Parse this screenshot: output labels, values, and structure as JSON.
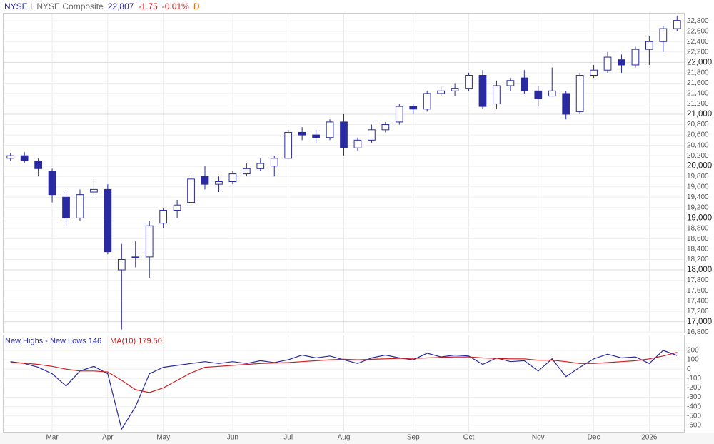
{
  "header": {
    "symbol": "NYSE.I",
    "name": "NYSE Composite",
    "last": "22,807",
    "change": "-1.75",
    "change_pct": "-0.01%",
    "period": "D"
  },
  "chart_data": [
    {
      "type": "candlestick",
      "color": "#2a2aa0",
      "grid": true,
      "categories": [
        null,
        null,
        null,
        "Mar",
        null,
        null,
        null,
        "Apr",
        null,
        null,
        null,
        "May",
        null,
        null,
        null,
        null,
        "Jun",
        null,
        null,
        null,
        "Jul",
        null,
        null,
        null,
        "Aug",
        null,
        null,
        null,
        null,
        "Sep",
        null,
        null,
        null,
        "Oct",
        null,
        null,
        null,
        null,
        "Nov",
        null,
        null,
        null,
        "Dec",
        null,
        null,
        null,
        "2026",
        null,
        null
      ],
      "open": [
        20150,
        20200,
        20100,
        19900,
        19400,
        19000,
        19500,
        19550,
        18000,
        18250,
        18250,
        18900,
        19150,
        19300,
        19800,
        19650,
        19700,
        19850,
        19950,
        20000,
        20150,
        20650,
        20600,
        20550,
        20850,
        20350,
        20500,
        20700,
        20850,
        21150,
        21100,
        21400,
        21450,
        21500,
        21750,
        21200,
        21550,
        21700,
        21450,
        21350,
        21400,
        21050,
        21750,
        21850,
        22050,
        21950,
        22250,
        22400,
        22650
      ],
      "high": [
        20250,
        20270,
        20150,
        19950,
        19500,
        19550,
        19750,
        19650,
        18500,
        18550,
        18950,
        19200,
        19350,
        19800,
        20000,
        19800,
        19900,
        20050,
        20150,
        20200,
        20700,
        20750,
        20700,
        20900,
        21000,
        20550,
        20800,
        20850,
        21200,
        21200,
        21450,
        21550,
        21600,
        21800,
        21850,
        21650,
        21700,
        21850,
        21550,
        21900,
        21450,
        21800,
        21950,
        22200,
        22150,
        22300,
        22500,
        22700,
        22900
      ],
      "low": [
        20100,
        20050,
        19800,
        19300,
        18850,
        18950,
        19450,
        18300,
        16850,
        18050,
        17850,
        18800,
        19000,
        19250,
        19550,
        19500,
        19650,
        19800,
        19900,
        19800,
        20150,
        20500,
        20450,
        20500,
        20200,
        20300,
        20450,
        20650,
        20800,
        21000,
        21050,
        21350,
        21350,
        21450,
        21100,
        21100,
        21450,
        21400,
        21150,
        21350,
        20900,
        21000,
        21700,
        21800,
        21800,
        21900,
        21950,
        22200,
        22600
      ],
      "close": [
        20200,
        20100,
        19950,
        19450,
        19000,
        19450,
        19550,
        18350,
        18200,
        18250,
        18850,
        19150,
        19250,
        19750,
        19650,
        19700,
        19850,
        19950,
        20050,
        20150,
        20650,
        20600,
        20550,
        20850,
        20350,
        20500,
        20700,
        20800,
        21150,
        21100,
        21400,
        21450,
        21500,
        21750,
        21150,
        21550,
        21650,
        21450,
        21300,
        21450,
        21000,
        21750,
        21850,
        22100,
        21950,
        22250,
        22400,
        22650,
        22807
      ],
      "ylim": [
        16790,
        22940
      ],
      "yticks": [
        {
          "value": 16800,
          "label": "16,800"
        },
        {
          "value": 17000,
          "label": "17,000"
        },
        {
          "value": 17200,
          "label": "17,200"
        },
        {
          "value": 17400,
          "label": "17,400"
        },
        {
          "value": 17600,
          "label": "17,600"
        },
        {
          "value": 17800,
          "label": "17,800"
        },
        {
          "value": 18000,
          "label": "18,000"
        },
        {
          "value": 18200,
          "label": "18,200"
        },
        {
          "value": 18400,
          "label": "18,400"
        },
        {
          "value": 18600,
          "label": "18,600"
        },
        {
          "value": 18800,
          "label": "18,800"
        },
        {
          "value": 19000,
          "label": "19,000"
        },
        {
          "value": 19200,
          "label": "19,200"
        },
        {
          "value": 19400,
          "label": "19,400"
        },
        {
          "value": 19600,
          "label": "19,600"
        },
        {
          "value": 19800,
          "label": "19,800"
        },
        {
          "value": 20000,
          "label": "20,000"
        },
        {
          "value": 20200,
          "label": "20,200"
        },
        {
          "value": 20400,
          "label": "20,400"
        },
        {
          "value": 20600,
          "label": "20,600"
        },
        {
          "value": 20800,
          "label": "20,800"
        },
        {
          "value": 21000,
          "label": "21,000"
        },
        {
          "value": 21200,
          "label": "21,200"
        },
        {
          "value": 21400,
          "label": "21,400"
        },
        {
          "value": 21600,
          "label": "21,600"
        },
        {
          "value": 21800,
          "label": "21,800"
        },
        {
          "value": 22000,
          "label": "22,000"
        },
        {
          "value": 22200,
          "label": "22,200"
        },
        {
          "value": 22400,
          "label": "22,400"
        },
        {
          "value": 22600,
          "label": "22,600"
        },
        {
          "value": 22800,
          "label": "22,800"
        }
      ]
    },
    {
      "type": "line",
      "grid": true,
      "series": [
        {
          "name": "New Highs - New Lows",
          "color": "#2a2aa0",
          "last": 146,
          "values": [
            80,
            60,
            20,
            -50,
            -180,
            -20,
            30,
            -50,
            -640,
            -400,
            -50,
            20,
            40,
            60,
            80,
            60,
            80,
            60,
            90,
            70,
            100,
            150,
            120,
            140,
            100,
            60,
            120,
            150,
            120,
            100,
            170,
            130,
            150,
            140,
            50,
            120,
            80,
            90,
            -20,
            110,
            -80,
            20,
            110,
            160,
            120,
            130,
            60,
            200,
            146
          ]
        },
        {
          "name": "MA(10)",
          "color": "#cc2020",
          "last": {
            "value": 179.5,
            "label": "179.50"
          },
          "values": [
            70,
            65,
            50,
            30,
            0,
            -20,
            -20,
            -30,
            -120,
            -220,
            -250,
            -200,
            -120,
            -40,
            20,
            30,
            40,
            50,
            60,
            65,
            70,
            80,
            90,
            100,
            105,
            100,
            105,
            110,
            115,
            115,
            120,
            125,
            130,
            130,
            120,
            115,
            110,
            110,
            95,
            95,
            80,
            60,
            60,
            70,
            80,
            90,
            110,
            140,
            179.5
          ]
        }
      ],
      "ylim": [
        -670,
        360
      ],
      "yticks": [
        200,
        100,
        0,
        -100,
        -200,
        -300,
        -400,
        -500,
        -600
      ]
    }
  ]
}
